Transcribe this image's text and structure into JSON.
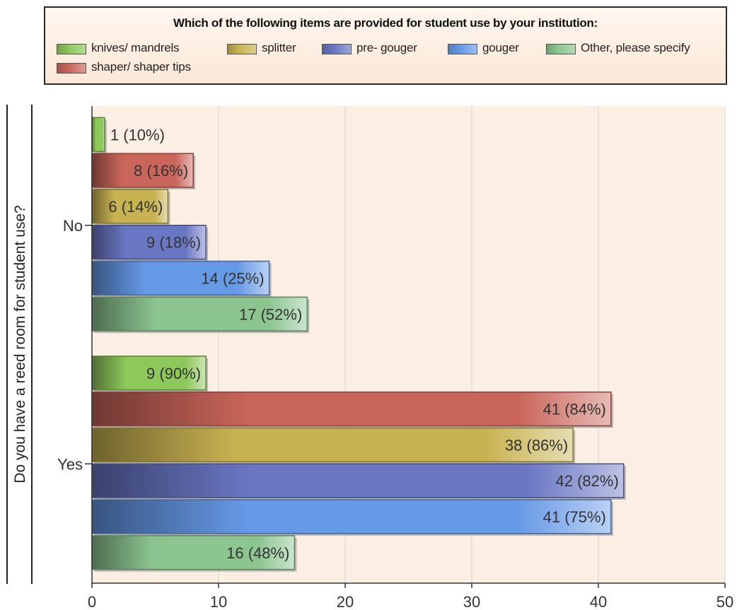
{
  "chart_data": {
    "type": "bar",
    "orientation": "horizontal",
    "title": "Which of the following items are provided for student use by your institution:",
    "ylabel": "Do you have a reed room for student use?",
    "xlabel": "",
    "categories": [
      "No",
      "Yes"
    ],
    "xlim": [
      0,
      50
    ],
    "x_ticks": [
      "0",
      "10",
      "20",
      "30",
      "40",
      "50"
    ],
    "grid": true,
    "legend_position": "top",
    "series": [
      {
        "name": "knives/ mandrels",
        "color": "#8dc85a",
        "values": [
          1,
          9
        ],
        "labels": [
          "1 (10%)",
          "9 (90%)"
        ]
      },
      {
        "name": "shaper/ shaper tips",
        "color": "#c9655a",
        "values": [
          8,
          41
        ],
        "labels": [
          "8 (16%)",
          "41 (84%)"
        ]
      },
      {
        "name": "splitter",
        "color": "#c8b352",
        "values": [
          6,
          38
        ],
        "labels": [
          "6 (14%)",
          "38 (86%)"
        ]
      },
      {
        "name": "pre- gouger",
        "color": "#6a77c4",
        "values": [
          9,
          42
        ],
        "labels": [
          "9 (18%)",
          "42 (82%)"
        ]
      },
      {
        "name": "gouger",
        "color": "#6699e6",
        "values": [
          14,
          41
        ],
        "labels": [
          "14 (25%)",
          "41 (75%)"
        ]
      },
      {
        "name": "Other, please specify",
        "color": "#8cc590",
        "values": [
          17,
          16
        ],
        "labels": [
          "17 (52%)",
          "16 (48%)"
        ]
      }
    ]
  }
}
